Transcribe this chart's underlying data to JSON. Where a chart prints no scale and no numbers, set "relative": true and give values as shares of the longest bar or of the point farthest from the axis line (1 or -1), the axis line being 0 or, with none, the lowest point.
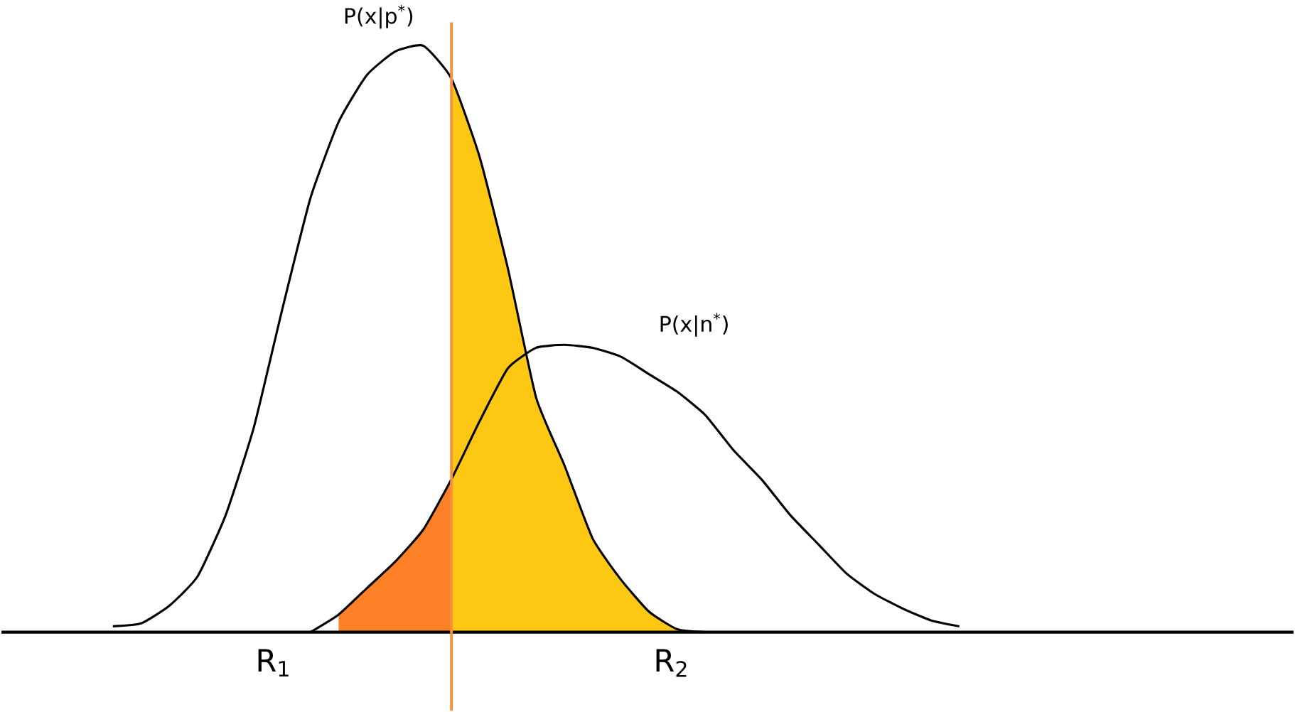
{
  "chart_data": {
    "type": "line",
    "relative": true,
    "categories": [
      null,
      null,
      null,
      null,
      null,
      null,
      null,
      null,
      null,
      null,
      null,
      null,
      null,
      null,
      null,
      null,
      null,
      null,
      null,
      null,
      null,
      null,
      null,
      null,
      null,
      null,
      null,
      null,
      null,
      null,
      null,
      null
    ],
    "series": [
      {
        "name": "P(x|p$^{*}$)",
        "color": "#000000",
        "values": [
          0.01,
          0.015,
          0.045,
          0.095,
          0.2,
          0.35,
          0.55,
          0.74,
          0.87,
          0.95,
          0.99,
          1,
          0.944,
          0.81,
          0.62,
          0.4,
          0.285,
          0.16,
          0.09,
          0.035,
          0.005,
          0,
          null,
          null,
          null,
          null,
          null,
          null,
          null,
          null,
          null,
          null
        ]
      },
      {
        "name": "P(x|n$^{*}$)",
        "color": "#000000",
        "values": [
          null,
          null,
          null,
          null,
          null,
          null,
          null,
          0,
          0.03,
          0.075,
          0.12,
          0.175,
          0.261,
          0.36,
          0.45,
          0.485,
          0.49,
          0.485,
          0.47,
          0.44,
          0.41,
          0.37,
          0.31,
          0.26,
          0.2,
          0.15,
          0.1,
          0.065,
          0.04,
          0.02,
          0.01,
          null
        ]
      },
      {
        "type": "area",
        "color": "#ff8127",
        "values": [
          null,
          null,
          null,
          null,
          null,
          null,
          null,
          null,
          0.03,
          0.075,
          0.12,
          0.175,
          0.261,
          null,
          null,
          null,
          null,
          null,
          null,
          null,
          null,
          null,
          null,
          null,
          null,
          null,
          null,
          null,
          null,
          null,
          null,
          null
        ]
      },
      {
        "type": "area",
        "color": "#fdc814",
        "values": [
          null,
          null,
          null,
          null,
          null,
          null,
          null,
          null,
          null,
          null,
          null,
          null,
          0.944,
          0.81,
          0.62,
          0.4,
          0.285,
          0.16,
          0.09,
          0.035,
          0.005,
          0,
          null,
          null,
          null,
          null,
          null,
          null,
          null,
          null,
          null,
          null
        ]
      }
    ],
    "annotations": [
      "R$_{1}$",
      "R$_{2}$"
    ]
  }
}
